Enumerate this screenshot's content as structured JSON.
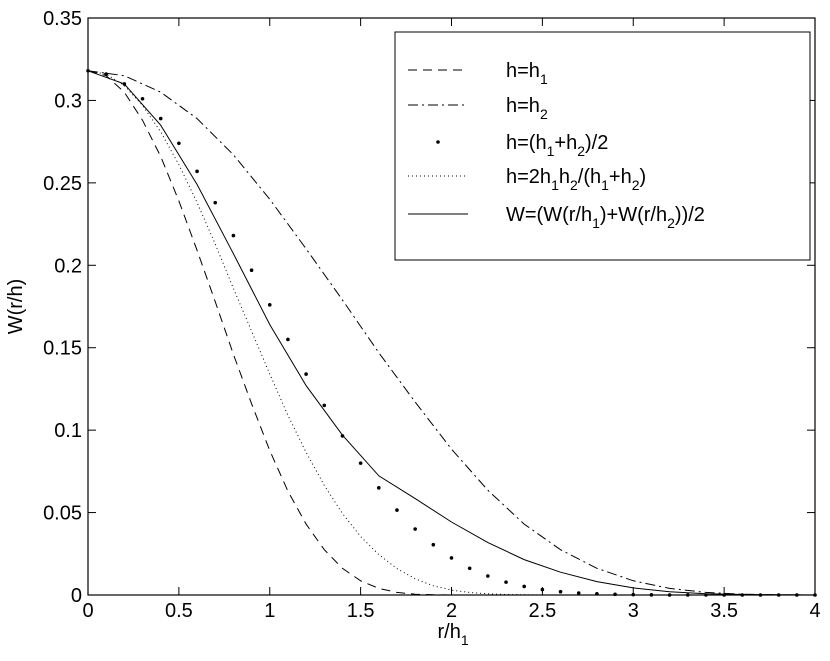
{
  "chart_data": {
    "type": "line",
    "xlabel": "r/h",
    "xlabel_sub": "1",
    "ylabel": "W(r/h)",
    "xlim": [
      0,
      4
    ],
    "ylim": [
      0,
      0.35
    ],
    "x_ticks": [
      "0",
      "0.5",
      "1",
      "1.5",
      "2",
      "2.5",
      "3",
      "3.5",
      "4"
    ],
    "y_ticks": [
      "0",
      "0.05",
      "0.1",
      "0.15",
      "0.2",
      "0.25",
      "0.3",
      "0.35"
    ],
    "grid": false,
    "legend_position": "top-right",
    "series": [
      {
        "name": "h=h1",
        "style": "dashed",
        "x": [
          0,
          0.1,
          0.2,
          0.3,
          0.4,
          0.5,
          0.6,
          0.7,
          0.8,
          0.9,
          1.0,
          1.1,
          1.2,
          1.3,
          1.4,
          1.5,
          1.6,
          1.7,
          1.8,
          1.9,
          2.0
        ],
        "y": [
          0.318,
          0.315,
          0.305,
          0.288,
          0.266,
          0.239,
          0.209,
          0.178,
          0.146,
          0.116,
          0.0876,
          0.063,
          0.043,
          0.0275,
          0.0162,
          0.0086,
          0.004,
          0.0016,
          0.0005,
          0.0001,
          0
        ]
      },
      {
        "name": "h=h2",
        "style": "dashdot",
        "x": [
          0,
          0.2,
          0.4,
          0.6,
          0.8,
          1.0,
          1.2,
          1.4,
          1.6,
          1.8,
          2.0,
          2.2,
          2.4,
          2.6,
          2.8,
          3.0,
          3.2,
          3.4,
          3.6,
          3.8,
          4.0
        ],
        "y": [
          0.318,
          0.315,
          0.305,
          0.289,
          0.267,
          0.24,
          0.21,
          0.179,
          0.147,
          0.117,
          0.0885,
          0.0635,
          0.043,
          0.0275,
          0.0162,
          0.0086,
          0.004,
          0.0016,
          0.0005,
          0.0001,
          0
        ]
      },
      {
        "name": "h=(h1+h2)/2",
        "style": "dots",
        "x": [
          0,
          0.1,
          0.2,
          0.3,
          0.4,
          0.5,
          0.6,
          0.7,
          0.8,
          0.9,
          1.0,
          1.1,
          1.2,
          1.3,
          1.4,
          1.5,
          1.6,
          1.7,
          1.8,
          1.9,
          2.0,
          2.1,
          2.2,
          2.3,
          2.4,
          2.5,
          2.6,
          2.7,
          2.8,
          2.9,
          3.0,
          3.1,
          3.2,
          3.3,
          3.4,
          3.5,
          3.6,
          3.7,
          3.8,
          3.9,
          4.0
        ],
        "y": [
          0.318,
          0.316,
          0.31,
          0.301,
          0.289,
          0.274,
          0.257,
          0.238,
          0.218,
          0.197,
          0.176,
          0.155,
          0.134,
          0.115,
          0.0965,
          0.08,
          0.065,
          0.0515,
          0.04,
          0.0305,
          0.0225,
          0.0162,
          0.0115,
          0.0078,
          0.0052,
          0.0033,
          0.002,
          0.0012,
          0.0007,
          0.0004,
          0.0002,
          0.0001,
          0,
          0,
          0,
          0,
          0,
          0,
          0,
          0,
          0
        ]
      },
      {
        "name": "h=2h1h2/(h1+h2)",
        "style": "dotted",
        "x": [
          0,
          0.1,
          0.2,
          0.3,
          0.4,
          0.5,
          0.6,
          0.7,
          0.8,
          0.9,
          1.0,
          1.1,
          1.2,
          1.3,
          1.4,
          1.5,
          1.6,
          1.7,
          1.8,
          1.9,
          2.0,
          2.1,
          2.2,
          2.3,
          2.4,
          2.5,
          2.6,
          2.7
        ],
        "y": [
          0.318,
          0.316,
          0.309,
          0.297,
          0.281,
          0.261,
          0.238,
          0.213,
          0.186,
          0.16,
          0.134,
          0.109,
          0.0865,
          0.0665,
          0.0495,
          0.0355,
          0.0245,
          0.016,
          0.0098,
          0.0056,
          0.003,
          0.0015,
          0.0007,
          0.0003,
          0.0001,
          0,
          0,
          0
        ]
      },
      {
        "name": "W=(W(r/h1)+W(r/h2))/2",
        "style": "solid",
        "x": [
          0,
          0.2,
          0.4,
          0.6,
          0.8,
          1.0,
          1.2,
          1.4,
          1.6,
          1.8,
          2.0,
          2.2,
          2.4,
          2.6,
          2.8,
          3.0,
          3.2,
          3.4,
          3.6,
          3.8,
          4.0
        ],
        "y": [
          0.318,
          0.31,
          0.285,
          0.249,
          0.207,
          0.164,
          0.127,
          0.097,
          0.0723,
          0.0585,
          0.0443,
          0.0318,
          0.0215,
          0.0138,
          0.0081,
          0.0043,
          0.002,
          0.0008,
          0.0003,
          0.0001,
          0
        ]
      }
    ]
  },
  "legend": {
    "items": [
      {
        "style": "dashed",
        "parts": [
          [
            "h=h",
            false
          ],
          [
            "1",
            true
          ]
        ]
      },
      {
        "style": "dashdot",
        "parts": [
          [
            "h=h",
            false
          ],
          [
            "2",
            true
          ]
        ]
      },
      {
        "style": "dots",
        "parts": [
          [
            "h=(h",
            false
          ],
          [
            "1",
            true
          ],
          [
            "+h",
            false
          ],
          [
            "2",
            true
          ],
          [
            ")/2",
            false
          ]
        ]
      },
      {
        "style": "dotted",
        "parts": [
          [
            "h=2h",
            false
          ],
          [
            "1",
            true
          ],
          [
            "h",
            false
          ],
          [
            "2",
            true
          ],
          [
            "/(h",
            false
          ],
          [
            "1",
            true
          ],
          [
            "+h",
            false
          ],
          [
            "2",
            true
          ],
          [
            ")",
            false
          ]
        ]
      },
      {
        "style": "solid",
        "parts": [
          [
            "W=(W(r/h",
            false
          ],
          [
            "1",
            true
          ],
          [
            ")+W(r/h",
            false
          ],
          [
            "2",
            true
          ],
          [
            "))/2",
            false
          ]
        ]
      }
    ]
  }
}
